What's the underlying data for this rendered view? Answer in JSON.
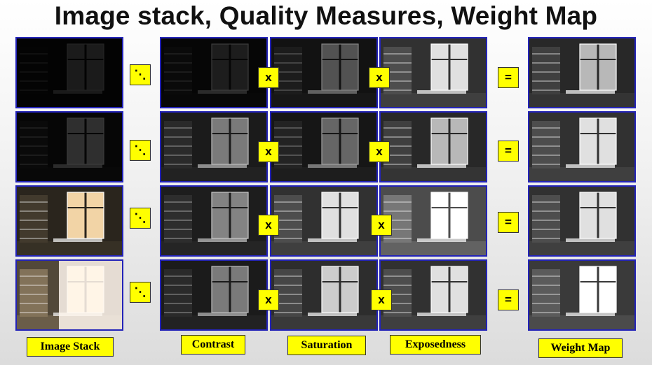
{
  "title": "Image stack, Quality Measures, Weight Map",
  "operators": {
    "divide": "⋱",
    "times": "x",
    "equals": "="
  },
  "labels": {
    "image_stack": "Image Stack",
    "contrast": "Contrast",
    "saturation": "Saturation",
    "exposedness": "Exposedness",
    "weight_map": "Weight Map"
  },
  "columns": [
    "image-stack",
    "contrast",
    "saturation",
    "exposedness",
    "weight-map"
  ],
  "rows": [
    "exposure-1",
    "exposure-2",
    "exposure-3",
    "exposure-4"
  ],
  "colors": {
    "operator_fill": "#ffff00",
    "frame_border": "#2323b8"
  }
}
